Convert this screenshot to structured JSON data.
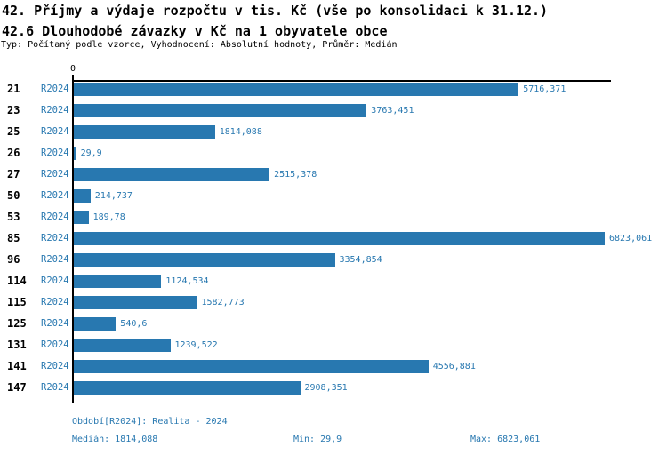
{
  "header": {
    "title_line1": "42. Příjmy a výdaje rozpočtu v tis. Kč (vše po konsolidaci k 31.12.)",
    "title_line2": "42.6 Dlouhodobé závazky v Kč na 1 obyvatele obce",
    "meta": "Typ: Počítaný podle vzorce, Vyhodnocení: Absolutní hodnoty, Průměr: Medián"
  },
  "chart_data": {
    "type": "bar",
    "orientation": "horizontal",
    "title": "42.6 Dlouhodobé závazky v Kč na 1 obyvatele obce",
    "axis_zero_label": "0",
    "xlim": [
      0,
      6900
    ],
    "grid": false,
    "median_reference_line": 1814.088,
    "series_label": "R2024",
    "categories": [
      "21",
      "23",
      "25",
      "26",
      "27",
      "50",
      "53",
      "85",
      "96",
      "114",
      "115",
      "125",
      "131",
      "141",
      "147"
    ],
    "series": [
      {
        "name": "R2024",
        "values": [
          5716.371,
          3763.451,
          1814.088,
          29.9,
          2515.378,
          214.737,
          189.78,
          6823.061,
          3354.854,
          1124.534,
          1582.773,
          540.6,
          1239.522,
          4556.881,
          2908.351
        ]
      }
    ],
    "rows": [
      {
        "id": "21",
        "period": "R2024",
        "value": 5716.371,
        "label": "5716,371"
      },
      {
        "id": "23",
        "period": "R2024",
        "value": 3763.451,
        "label": "3763,451"
      },
      {
        "id": "25",
        "period": "R2024",
        "value": 1814.088,
        "label": "1814,088"
      },
      {
        "id": "26",
        "period": "R2024",
        "value": 29.9,
        "label": "29,9"
      },
      {
        "id": "27",
        "period": "R2024",
        "value": 2515.378,
        "label": "2515,378"
      },
      {
        "id": "50",
        "period": "R2024",
        "value": 214.737,
        "label": "214,737"
      },
      {
        "id": "53",
        "period": "R2024",
        "value": 189.78,
        "label": "189,78"
      },
      {
        "id": "85",
        "period": "R2024",
        "value": 6823.061,
        "label": "6823,061"
      },
      {
        "id": "96",
        "period": "R2024",
        "value": 3354.854,
        "label": "3354,854"
      },
      {
        "id": "114",
        "period": "R2024",
        "value": 1124.534,
        "label": "1124,534"
      },
      {
        "id": "115",
        "period": "R2024",
        "value": 1582.773,
        "label": "1582,773"
      },
      {
        "id": "125",
        "period": "R2024",
        "value": 540.6,
        "label": "540,6"
      },
      {
        "id": "131",
        "period": "R2024",
        "value": 1239.522,
        "label": "1239,522"
      },
      {
        "id": "141",
        "period": "R2024",
        "value": 4556.881,
        "label": "4556,881"
      },
      {
        "id": "147",
        "period": "R2024",
        "value": 2908.351,
        "label": "2908,351"
      }
    ]
  },
  "footer": {
    "period": "Období[R2024]: Realita - 2024",
    "median": "Medián: 1814,088",
    "min": "Min: 29,9",
    "max": "Max: 6823,061"
  },
  "colors": {
    "bar": "#2878b0",
    "blue_text": "#2878b0",
    "axis": "#000000",
    "background": "#ffffff"
  }
}
